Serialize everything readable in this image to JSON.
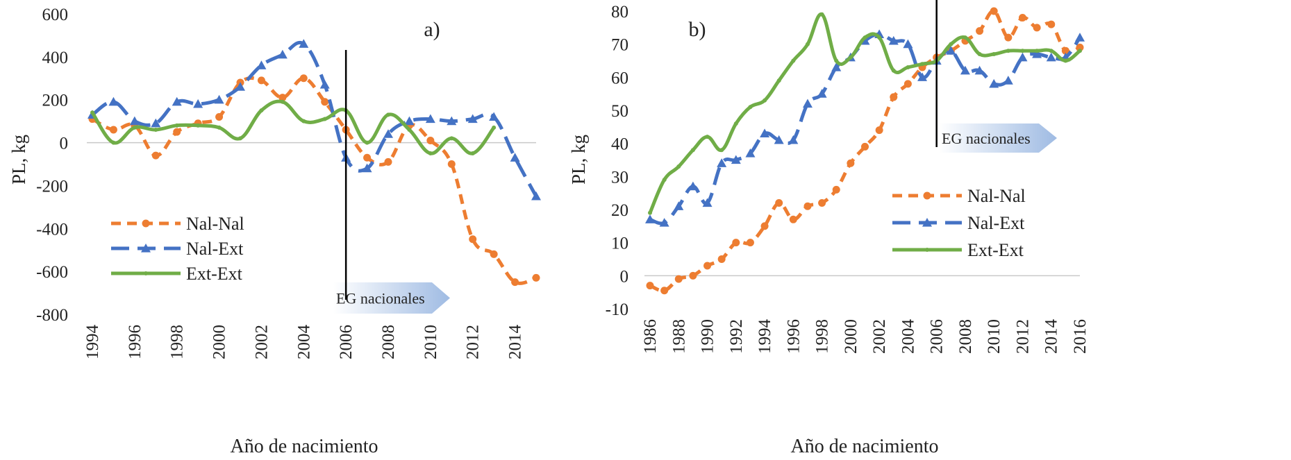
{
  "chart_data": [
    {
      "type": "line",
      "panel_label": "a)",
      "title": "",
      "xlabel": "Año de nacimiento",
      "ylabel": "PL, kg",
      "ylim": [
        -800,
        600
      ],
      "yticks": [
        -800,
        -600,
        -400,
        -200,
        0,
        200,
        400,
        600
      ],
      "xlim": [
        1994,
        2015
      ],
      "xticks": [
        1994,
        1996,
        1998,
        2000,
        2002,
        2004,
        2006,
        2008,
        2010,
        2012,
        2014
      ],
      "grid": false,
      "legend_position": "bottom-left",
      "annotation": {
        "text": "EG nacionales",
        "x": 2006
      },
      "series": [
        {
          "name": "Nal-Nal",
          "style": "dashed-dots",
          "color": "#ED7D31",
          "x": [
            1994,
            1995,
            1996,
            1997,
            1998,
            1999,
            2000,
            2001,
            2002,
            2003,
            2004,
            2005,
            2006,
            2007,
            2008,
            2009,
            2010,
            2011,
            2012,
            2013,
            2014,
            2015
          ],
          "y": [
            110,
            60,
            80,
            -60,
            50,
            90,
            120,
            280,
            290,
            210,
            300,
            190,
            60,
            -70,
            -90,
            80,
            10,
            -100,
            -450,
            -520,
            -650,
            -630
          ]
        },
        {
          "name": "Nal-Ext",
          "style": "long-dash-triangles",
          "color": "#4472C4",
          "x": [
            1994,
            1995,
            1996,
            1997,
            1998,
            1999,
            2000,
            2001,
            2002,
            2003,
            2004,
            2005,
            2006,
            2007,
            2008,
            2009,
            2010,
            2011,
            2012,
            2013,
            2014,
            2015
          ],
          "y": [
            130,
            190,
            100,
            90,
            190,
            180,
            200,
            260,
            360,
            410,
            460,
            270,
            -70,
            -120,
            40,
            100,
            110,
            100,
            110,
            120,
            -70,
            -250
          ]
        },
        {
          "name": "Ext-Ext",
          "style": "solid",
          "color": "#70AD47",
          "x": [
            1994,
            1995,
            1996,
            1997,
            1998,
            1999,
            2000,
            2001,
            2002,
            2003,
            2004,
            2005,
            2006,
            2007,
            2008,
            2009,
            2010,
            2011,
            2012,
            2013
          ],
          "y": [
            140,
            0,
            70,
            60,
            80,
            80,
            70,
            20,
            150,
            190,
            100,
            110,
            150,
            0,
            130,
            60,
            -50,
            20,
            -50,
            70
          ]
        }
      ]
    },
    {
      "type": "line",
      "panel_label": "b)",
      "title": "",
      "xlabel": "Año de nacimiento",
      "ylabel": "PL, kg",
      "ylim": [
        -10,
        80
      ],
      "yticks": [
        -10,
        0,
        10,
        20,
        30,
        40,
        50,
        60,
        70,
        80
      ],
      "xlim": [
        1986,
        2016
      ],
      "xticks": [
        1986,
        1988,
        1990,
        1992,
        1994,
        1996,
        1998,
        2000,
        2002,
        2004,
        2006,
        2008,
        2010,
        2012,
        2014,
        2016
      ],
      "grid": false,
      "legend_position": "right",
      "annotation": {
        "text": "EG nacionales",
        "x": 2006
      },
      "series": [
        {
          "name": "Nal-Nal",
          "style": "dashed-dots",
          "color": "#ED7D31",
          "x": [
            1986,
            1987,
            1988,
            1989,
            1990,
            1991,
            1992,
            1993,
            1994,
            1995,
            1996,
            1997,
            1998,
            1999,
            2000,
            2001,
            2002,
            2003,
            2004,
            2005,
            2006,
            2007,
            2008,
            2009,
            2010,
            2011,
            2012,
            2013,
            2014,
            2015,
            2016
          ],
          "y": [
            -3,
            -4.5,
            -1,
            0,
            3,
            5,
            10,
            10,
            15,
            22,
            17,
            21,
            22,
            26,
            34,
            39,
            44,
            54,
            58,
            63,
            66,
            68,
            71,
            74,
            80,
            72,
            78,
            75,
            76,
            68,
            69
          ]
        },
        {
          "name": "Nal-Ext",
          "style": "long-dash-triangles",
          "color": "#4472C4",
          "x": [
            1986,
            1987,
            1988,
            1989,
            1990,
            1991,
            1992,
            1993,
            1994,
            1995,
            1996,
            1997,
            1998,
            1999,
            2000,
            2001,
            2002,
            2003,
            2004,
            2005,
            2006,
            2007,
            2008,
            2009,
            2010,
            2011,
            2012,
            2013,
            2014,
            2015,
            2016
          ],
          "y": [
            17,
            16,
            21,
            27,
            22,
            34,
            35,
            37,
            43,
            41,
            41,
            52,
            55,
            63,
            66,
            71,
            73,
            71,
            70,
            60,
            65,
            68,
            62,
            62,
            58,
            59,
            66,
            67,
            66,
            66,
            72
          ]
        },
        {
          "name": "Ext-Ext",
          "style": "solid",
          "color": "#70AD47",
          "x": [
            1986,
            1987,
            1988,
            1989,
            1990,
            1991,
            1992,
            1993,
            1994,
            1995,
            1996,
            1997,
            1998,
            1999,
            2000,
            2001,
            2002,
            2003,
            2004,
            2005,
            2006,
            2007,
            2008,
            2009,
            2010,
            2011,
            2012,
            2013,
            2014,
            2015,
            2016
          ],
          "y": [
            19,
            29,
            33,
            38,
            42,
            38,
            46,
            51,
            53,
            59,
            65,
            70,
            79,
            65,
            66,
            72,
            72,
            62,
            63,
            64,
            65,
            70,
            72,
            67,
            67,
            68,
            68,
            68,
            68,
            65,
            68
          ]
        }
      ]
    }
  ]
}
